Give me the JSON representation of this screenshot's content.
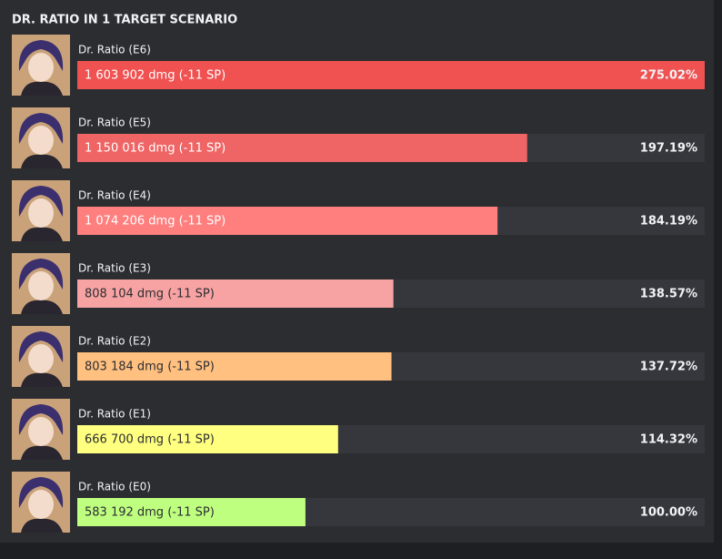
{
  "chart_data": {
    "type": "bar",
    "title": "DR. RATIO IN 1 TARGET SCENARIO",
    "categories": [
      "Dr. Ratio (E6)",
      "Dr. Ratio (E5)",
      "Dr. Ratio (E4)",
      "Dr. Ratio (E3)",
      "Dr. Ratio (E2)",
      "Dr. Ratio (E1)",
      "Dr. Ratio (E0)"
    ],
    "values": [
      1603902,
      1150016,
      1074206,
      808104,
      803184,
      666700,
      583192
    ],
    "value_labels": [
      "1 603 902 dmg (-11 SP)",
      "1 150 016 dmg (-11 SP)",
      "1 074 206 dmg (-11 SP)",
      "808 104 dmg (-11 SP)",
      "803 184 dmg (-11 SP)",
      "666 700 dmg (-11 SP)",
      "583 192 dmg (-11 SP)"
    ],
    "percent": [
      275.02,
      197.19,
      184.19,
      138.57,
      137.72,
      114.32,
      100.0
    ],
    "percent_labels": [
      "275.02%",
      "197.19%",
      "184.19%",
      "138.57%",
      "137.72%",
      "114.32%",
      "100.00%"
    ],
    "colors": [
      "#f05252",
      "#ef6565",
      "#ff7f7f",
      "#f8a3a3",
      "#ffc080",
      "#ffff80",
      "#bfff80"
    ]
  }
}
